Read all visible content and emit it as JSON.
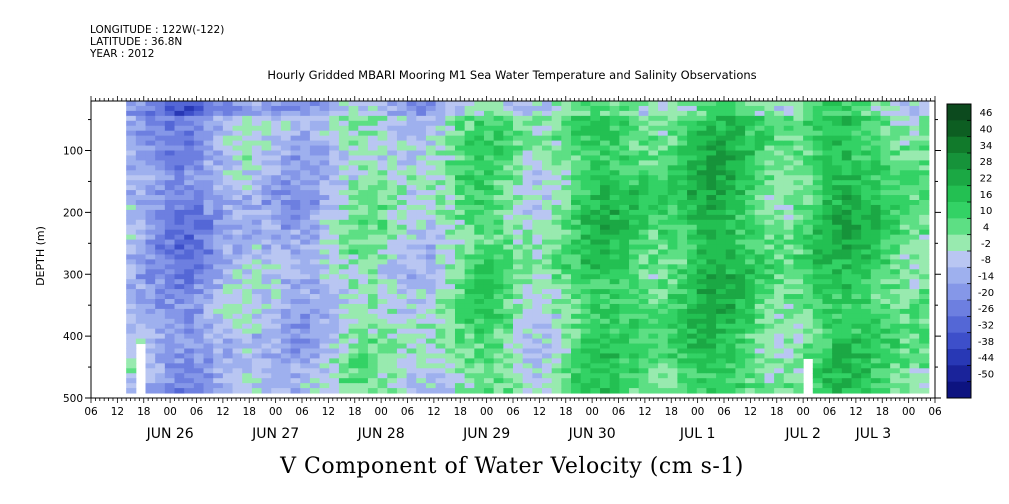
{
  "header": {
    "longitude": "LONGITUDE : 122W(-122)",
    "latitude": "LATITUDE : 36.8N",
    "year": "YEAR : 2012"
  },
  "chart_data": {
    "type": "heatmap",
    "title": "Hourly Gridded MBARI Mooring M1 Sea Water Temperature and Salinity Observations",
    "subtitle": "V Component of Water Velocity (cm s-1)",
    "xlabel": "",
    "ylabel": "DEPTH (m)",
    "x_range_hours": [
      0,
      192
    ],
    "x_hour_ticks": [
      "06",
      "12",
      "18",
      "00",
      "06",
      "12",
      "18",
      "00",
      "06",
      "12",
      "18",
      "00",
      "06",
      "12",
      "18",
      "00",
      "06",
      "12",
      "18",
      "00",
      "06",
      "12",
      "18",
      "00",
      "06",
      "12",
      "18",
      "00",
      "06",
      "12",
      "18",
      "00",
      "06"
    ],
    "x_day_labels": [
      {
        "label": "JUN 26",
        "hour_index": 18
      },
      {
        "label": "JUN 27",
        "hour_index": 42
      },
      {
        "label": "JUN 28",
        "hour_index": 66
      },
      {
        "label": "JUN 29",
        "hour_index": 90
      },
      {
        "label": "JUN 30",
        "hour_index": 114
      },
      {
        "label": "JUL  1",
        "hour_index": 138
      },
      {
        "label": "JUL  2",
        "hour_index": 162
      },
      {
        "label": "JUL  3",
        "hour_index": 178
      }
    ],
    "ylim": [
      500,
      20
    ],
    "y_ticks": [
      100,
      200,
      300,
      400,
      500
    ],
    "y_ticks_labels": [
      "100",
      "200",
      "300",
      "400",
      "500"
    ],
    "data_depth_range": [
      20,
      485
    ],
    "data_hour_range": [
      8,
      190
    ],
    "colorbar": {
      "levels": [
        46,
        40,
        34,
        28,
        22,
        16,
        10,
        4,
        -2,
        -8,
        -14,
        -20,
        -26,
        -32,
        -38,
        -44,
        -50
      ],
      "labels": [
        "46",
        "40",
        "34",
        "28",
        "22",
        "16",
        "10",
        "4",
        "-2",
        "-8",
        "-14",
        "-20",
        "-26",
        "-32",
        "-38",
        "-44",
        "-50"
      ],
      "colors": [
        "#0c4a1e",
        "#0d5e22",
        "#117a2b",
        "#16933a",
        "#1ba844",
        "#23c052",
        "#33d265",
        "#5ddf84",
        "#98eaaf",
        "#b9c6f2",
        "#9eb0ee",
        "#8597e8",
        "#6d7fe0",
        "#5467d6",
        "#3d4fca",
        "#2838b5",
        "#1a239a",
        "#0d1380"
      ]
    },
    "velocity_pattern": {
      "description_hours": [
        10,
        20,
        30,
        40,
        50,
        60,
        70,
        80,
        90,
        100,
        110,
        120,
        130,
        140,
        150,
        160,
        170,
        180,
        190
      ],
      "mean_velocity_cm_s": [
        -14,
        -16,
        -12,
        -10,
        -6,
        -3,
        -1,
        2,
        6,
        3,
        10,
        12,
        14,
        16,
        12,
        8,
        14,
        16,
        4
      ]
    },
    "data_gaps": [
      {
        "hour_start": 10,
        "hour_end": 12,
        "depth_start": 410,
        "depth_end": 490
      },
      {
        "hour_start": 160,
        "hour_end": 162,
        "depth_start": 435,
        "depth_end": 490
      }
    ]
  }
}
